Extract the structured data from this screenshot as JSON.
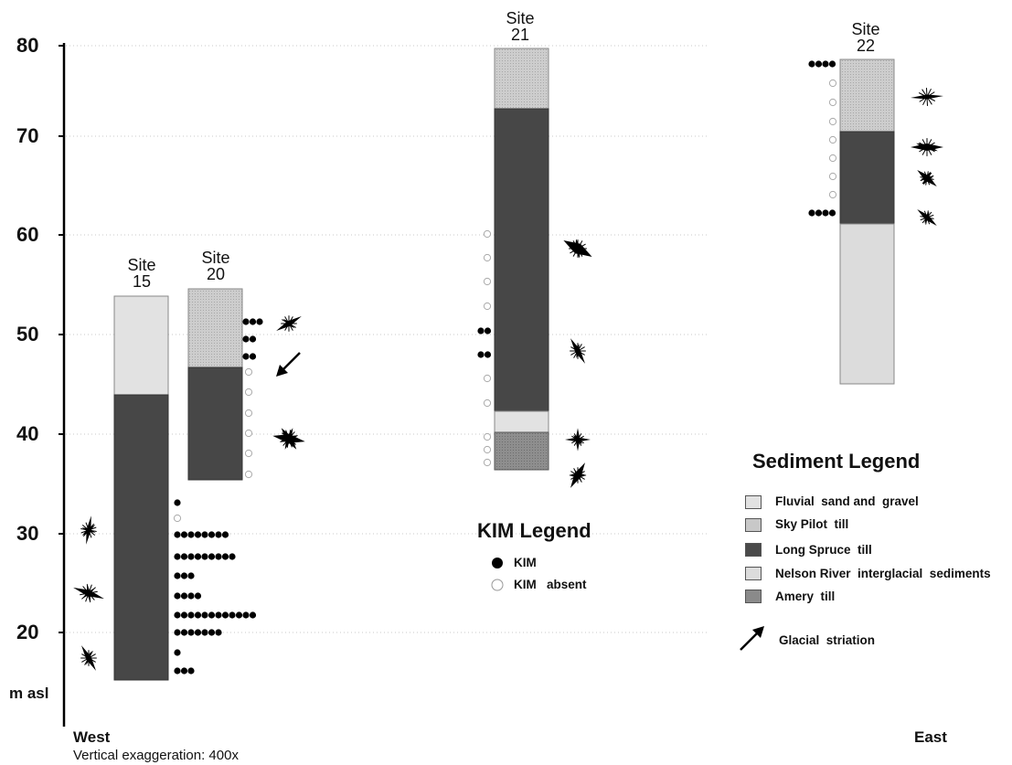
{
  "axis": {
    "ticks": [
      "80",
      "70",
      "60",
      "50",
      "40",
      "30",
      "20"
    ],
    "unit_label": "m asl",
    "west_label": "West",
    "east_label": "East",
    "exaggeration": "Vertical exaggeration: 400x"
  },
  "sites": [
    {
      "id": "site-15",
      "label_top": "Site",
      "label_num": "15"
    },
    {
      "id": "site-20",
      "label_top": "Site",
      "label_num": "20"
    },
    {
      "id": "site-21",
      "label_top": "Site",
      "label_num": "21"
    },
    {
      "id": "site-22",
      "label_top": "Site",
      "label_num": "22"
    }
  ],
  "kim_legend": {
    "title": "KIM Legend",
    "present": "KIM",
    "absent": "KIM   absent"
  },
  "sediment_legend": {
    "title": "Sediment Legend",
    "items": [
      {
        "label": "Fluvial  sand and  gravel",
        "color": "#e2e2e2"
      },
      {
        "label": "Sky Pilot  till",
        "color": "#c8c8c8"
      },
      {
        "label": "Long Spruce  till",
        "color": "#4a4a4a"
      },
      {
        "label": "Nelson River  interglacial  sediments",
        "color": "#dcdcdc"
      },
      {
        "label": "Amery  till",
        "color": "#8a8a8a"
      }
    ],
    "striation_label": "Glacial  striation"
  },
  "colors": {
    "fluvial": "#e2e2e2",
    "sky_pilot": "#c8c8c8",
    "long_spruce": "#474747",
    "nelson": "#dcdcdc",
    "amery": "#8d8d8d"
  }
}
